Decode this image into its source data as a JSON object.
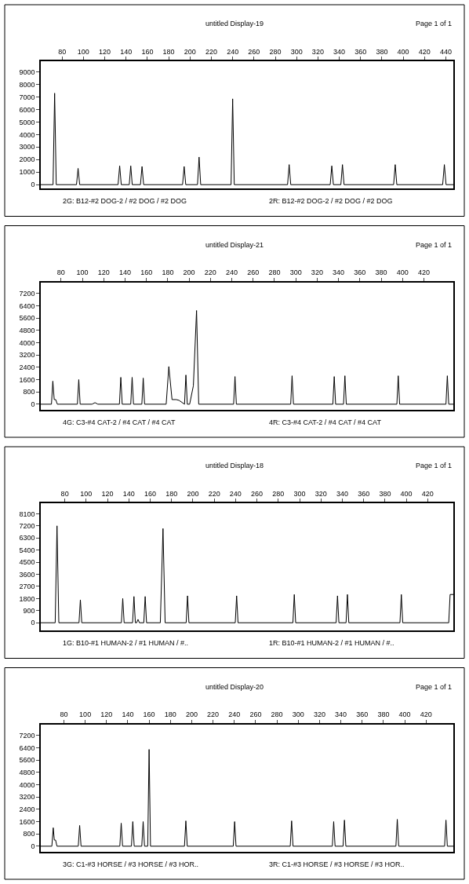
{
  "chart_data": [
    {
      "type": "line",
      "title": "untitled Display-19",
      "annotations": [
        "Page 1 of 1",
        "2G: B12-#2 DOG-2 / #2 DOG / #2 DOG",
        "2R: B12-#2 DOG-2 / #2 DOG / #2 DOG"
      ],
      "xlim": [
        60,
        447
      ],
      "xticks": [
        80,
        100,
        120,
        140,
        160,
        180,
        200,
        220,
        240,
        260,
        280,
        300,
        320,
        340,
        360,
        380,
        400,
        420,
        440
      ],
      "ylim": [
        -300,
        9850
      ],
      "yticks": [
        0,
        1000,
        2000,
        3000,
        4000,
        5000,
        6000,
        7000,
        8000,
        9000
      ],
      "marker": "none",
      "line_style": "solid",
      "series": [
        {
          "color": "#000000",
          "x": [
            60,
            71.5,
            73,
            74.5,
            93.5,
            95,
            96.5,
            132.5,
            134,
            135.5,
            143,
            144.4,
            145.8,
            153.5,
            155,
            156.5,
            193,
            194.5,
            196,
            207,
            208.5,
            210,
            238.5,
            240,
            241.5,
            291.5,
            293,
            294.5,
            331.5,
            333,
            334.5,
            341.5,
            343,
            344.5,
            391,
            392.5,
            394,
            437,
            438.6,
            440.2,
            447
          ],
          "values": [
            0,
            0,
            7300,
            0,
            0,
            1300,
            0,
            0,
            1500,
            0,
            0,
            1500,
            0,
            0,
            1450,
            0,
            0,
            1450,
            0,
            0,
            2200,
            0,
            0,
            6850,
            0,
            0,
            1600,
            0,
            0,
            1500,
            0,
            0,
            1600,
            0,
            0,
            1600,
            0,
            0,
            1600,
            0,
            0
          ]
        }
      ]
    },
    {
      "type": "line",
      "title": "untitled Display-21",
      "annotations": [
        "Page 1 of 1",
        "4G: C3-#4 CAT-2 / #4 CAT / #4 CAT",
        "4R: C3-#4 CAT-2 / #4 CAT / #4 CAT"
      ],
      "xlim": [
        61,
        447.6
      ],
      "xticks": [
        80,
        100,
        120,
        140,
        160,
        180,
        200,
        220,
        240,
        260,
        280,
        300,
        320,
        340,
        360,
        380,
        400,
        420
      ],
      "ylim": [
        -340,
        7940
      ],
      "yticks": [
        0,
        800,
        1600,
        2400,
        3200,
        4000,
        4800,
        5600,
        6400,
        7200
      ],
      "marker": "none",
      "line_style": "solid",
      "series": [
        {
          "color": "#000000",
          "x": [
            61,
            71,
            72.3,
            73.6,
            75,
            76.5,
            78,
            95.3,
            96.6,
            97.9,
            109,
            111.8,
            114.5,
            134.7,
            136,
            137.3,
            145.3,
            146.6,
            147.9,
            155.7,
            157,
            158.3,
            178.5,
            181,
            184,
            188,
            190.6,
            195.7,
            197,
            198.3,
            200.5,
            204,
            207,
            209,
            241.7,
            243,
            244.3,
            295.2,
            296.5,
            297.8,
            334.7,
            336,
            337.3,
            344.7,
            346,
            347.3,
            394.7,
            396,
            397.3,
            440.7,
            442,
            443.3,
            447.6
          ],
          "values": [
            0,
            0,
            1500,
            300,
            300,
            0,
            0,
            0,
            1600,
            0,
            0,
            100,
            0,
            0,
            1750,
            0,
            0,
            1750,
            0,
            0,
            1700,
            0,
            0,
            2450,
            300,
            300,
            250,
            0,
            1900,
            0,
            0,
            1200,
            6100,
            0,
            0,
            1800,
            0,
            0,
            1850,
            0,
            0,
            1800,
            0,
            0,
            1850,
            0,
            0,
            1850,
            0,
            0,
            1850,
            0,
            0
          ]
        }
      ]
    },
    {
      "type": "line",
      "title": "untitled Display-18",
      "annotations": [
        "Page 1 of 1",
        "1G: B10-#1 HUMAN-2 / #1 HUMAN / #..",
        "1R: B10-#1 HUMAN-2 / #1 HUMAN / #.."
      ],
      "xlim": [
        57.5,
        444
      ],
      "xticks": [
        80,
        100,
        120,
        140,
        160,
        180,
        200,
        220,
        240,
        260,
        280,
        300,
        320,
        340,
        360,
        380,
        400,
        420
      ],
      "ylim": [
        -570,
        8880
      ],
      "yticks": [
        0,
        900,
        1800,
        2700,
        3600,
        4500,
        5400,
        6300,
        7200,
        8100
      ],
      "marker": "none",
      "line_style": "solid",
      "series": [
        {
          "color": "#000000",
          "x": [
            57.5,
            71,
            72.7,
            74.4,
            93.3,
            94.6,
            95.9,
            133,
            134.3,
            135.6,
            143.5,
            144.8,
            146.1,
            147.3,
            148.6,
            149.9,
            154,
            155.3,
            156.6,
            169.5,
            172,
            174,
            193.7,
            195,
            196.3,
            239.7,
            241,
            242.3,
            293.7,
            295,
            296.3,
            334.2,
            335.5,
            336.8,
            343.5,
            344.8,
            346.1,
            394,
            395.3,
            396.6,
            439.7,
            441,
            444
          ],
          "values": [
            0,
            0,
            7200,
            0,
            0,
            1700,
            0,
            0,
            1800,
            0,
            0,
            1950,
            0,
            0,
            250,
            0,
            0,
            1950,
            0,
            0,
            7000,
            0,
            0,
            2000,
            0,
            0,
            2000,
            0,
            0,
            2100,
            0,
            0,
            2000,
            0,
            0,
            2100,
            0,
            0,
            2100,
            0,
            0,
            2100,
            2100
          ]
        }
      ]
    },
    {
      "type": "line",
      "title": "untitled Display-20",
      "annotations": [
        "Page 1 of 1",
        "3G: C1-#3 HORSE / #3 HORSE / #3 HOR..",
        "3R: C1-#3 HORSE / #3 HORSE / #3 HOR.."
      ],
      "xlim": [
        58.3,
        445.6
      ],
      "xticks": [
        80,
        100,
        120,
        140,
        160,
        180,
        200,
        220,
        240,
        260,
        280,
        300,
        320,
        340,
        360,
        380,
        400,
        420
      ],
      "ylim": [
        -340,
        7940
      ],
      "yticks": [
        0,
        800,
        1600,
        2400,
        3200,
        4000,
        4800,
        5600,
        6400,
        7200
      ],
      "marker": "none",
      "line_style": "solid",
      "series": [
        {
          "color": "#000000",
          "x": [
            58.3,
            68.7,
            70,
            71,
            72.2,
            73.5,
            93.5,
            94.8,
            96.1,
            132.5,
            133.8,
            135.1,
            143.4,
            144.7,
            146,
            153.1,
            154.4,
            155.7,
            158.7,
            160,
            161.3,
            193.2,
            194.5,
            195.8,
            239,
            240.3,
            241.6,
            292.5,
            293.8,
            295.1,
            332,
            333.3,
            334.6,
            342.1,
            343.4,
            344.7,
            391.7,
            393,
            394.3,
            437.4,
            438.7,
            440,
            445.6
          ],
          "values": [
            0,
            0,
            1200,
            400,
            400,
            0,
            0,
            1350,
            0,
            0,
            1500,
            0,
            0,
            1600,
            0,
            0,
            1600,
            0,
            0,
            6300,
            0,
            0,
            1650,
            0,
            0,
            1600,
            0,
            0,
            1650,
            0,
            0,
            1600,
            0,
            0,
            1700,
            0,
            0,
            1750,
            0,
            0,
            1700,
            0,
            0
          ]
        }
      ]
    }
  ]
}
